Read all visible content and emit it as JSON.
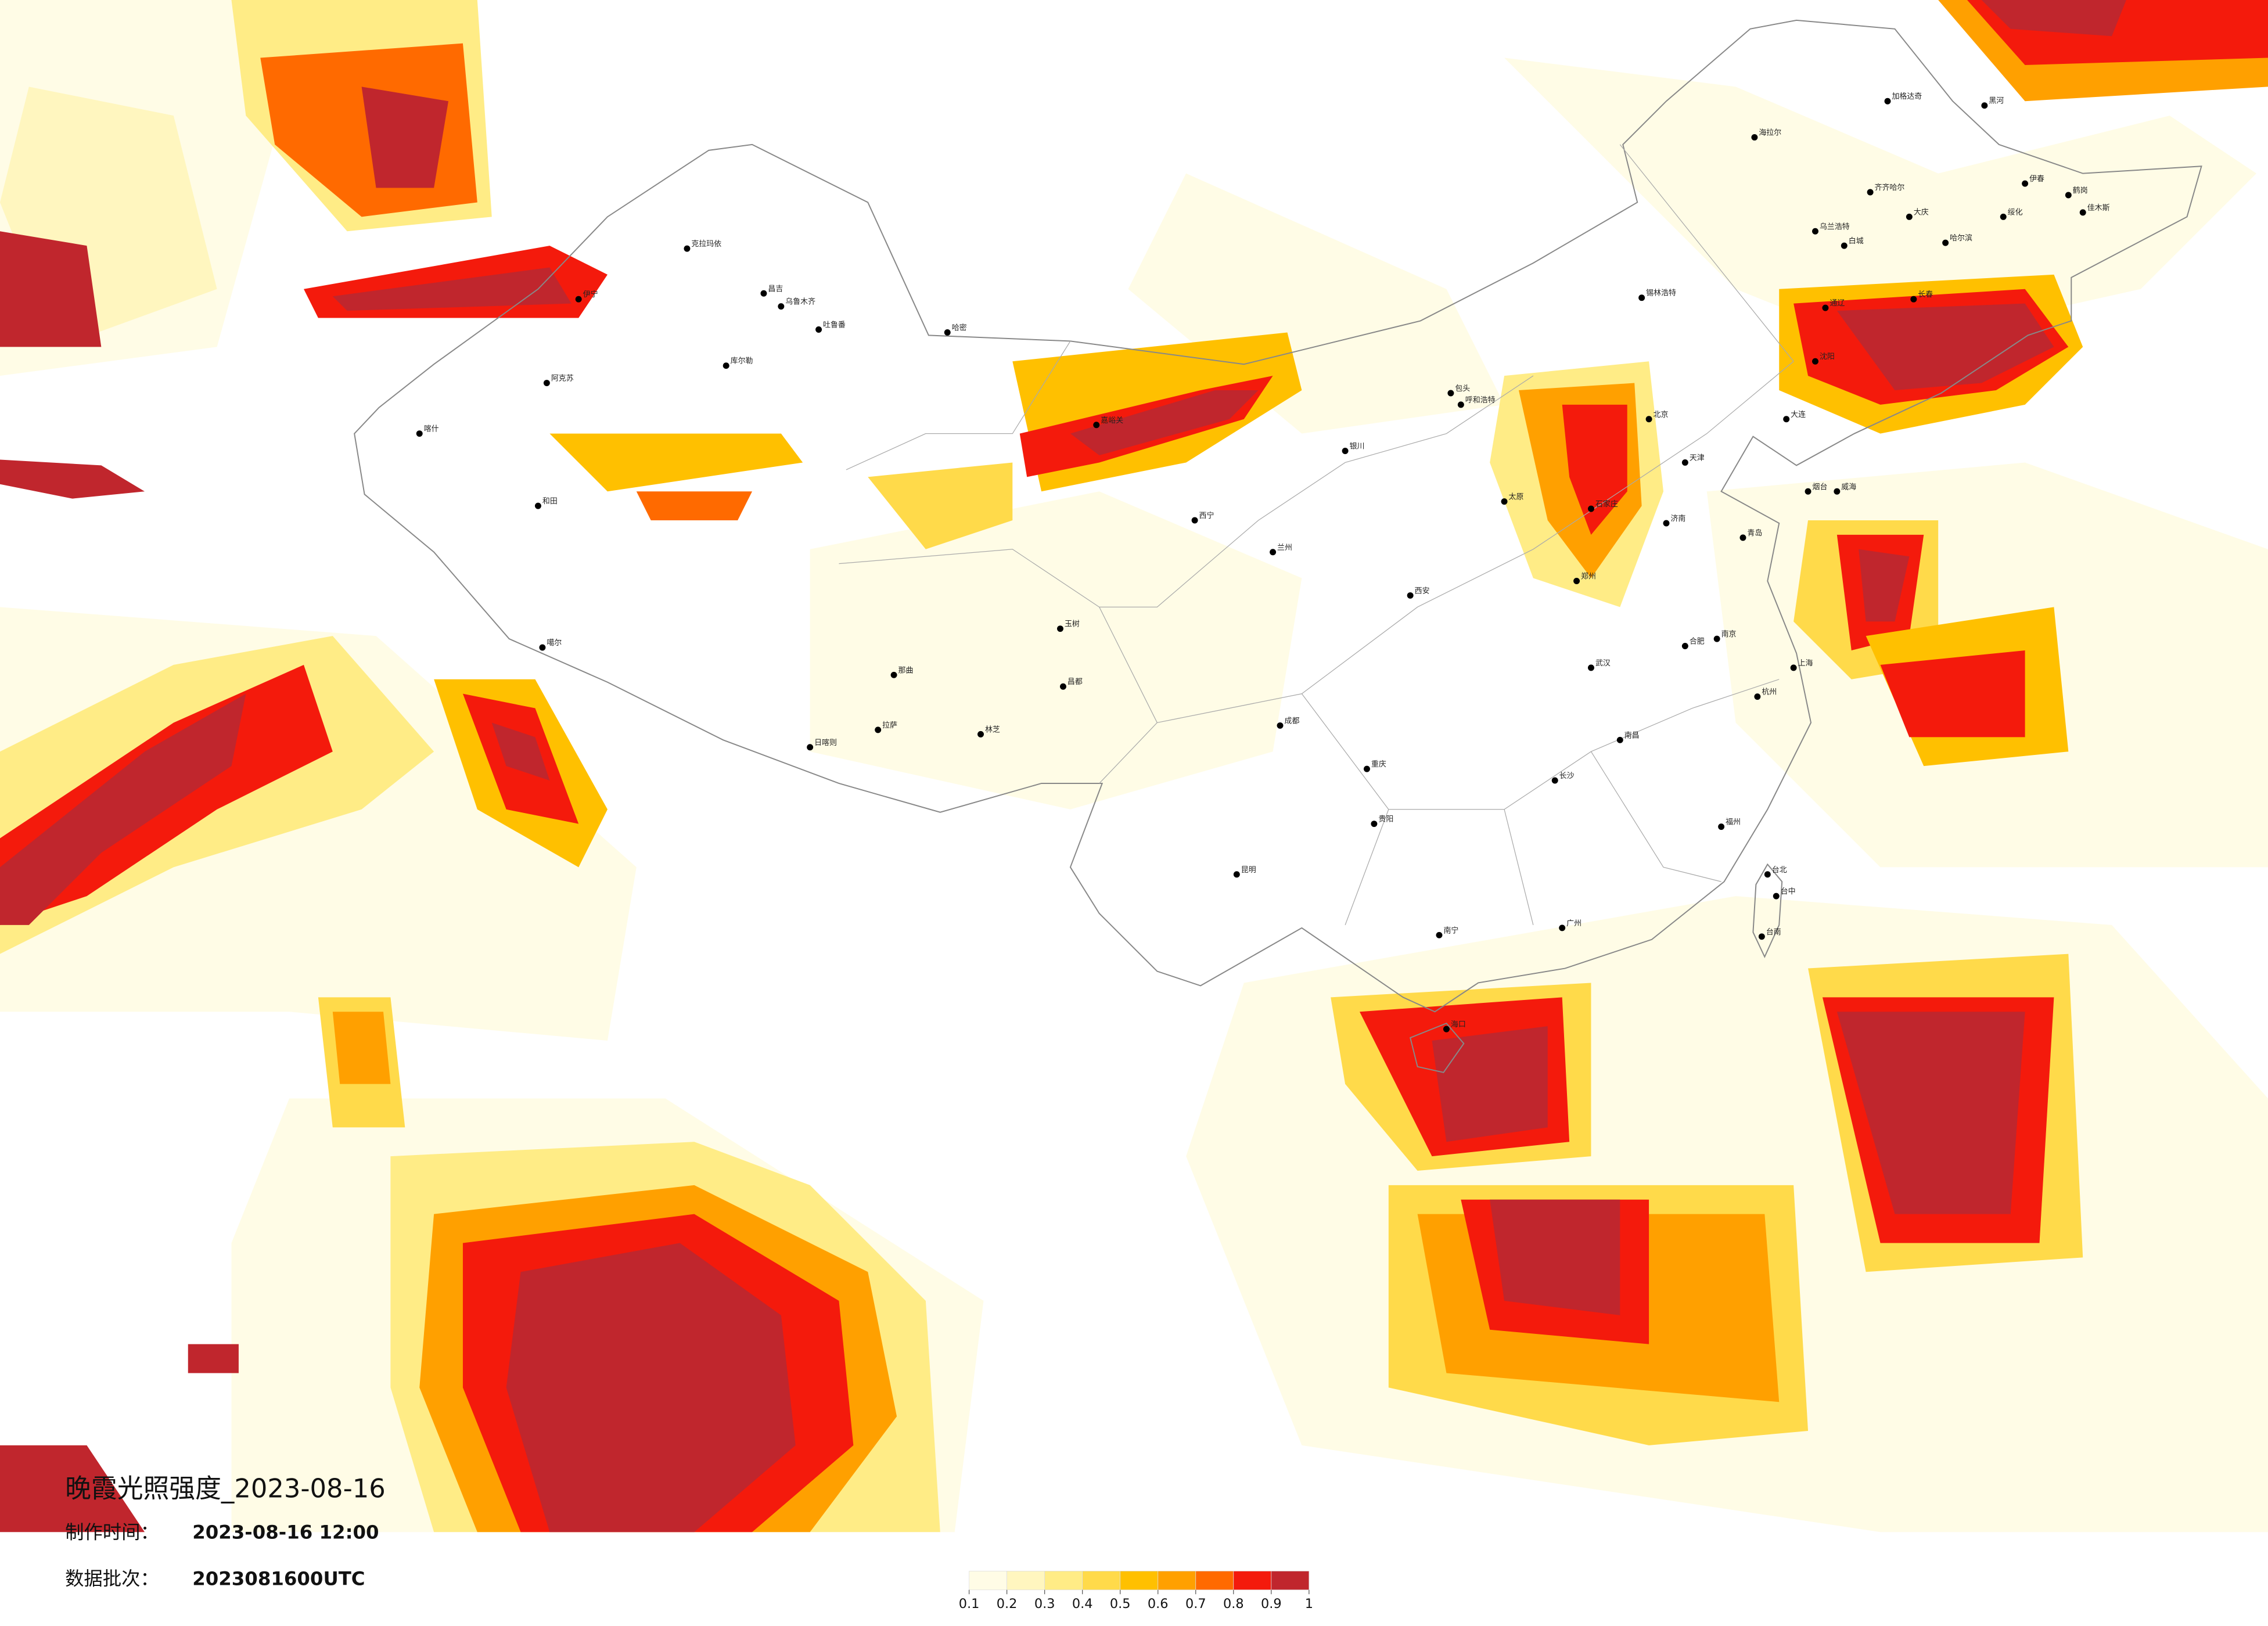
{
  "title": "晚霞光照强度_2023-08-16",
  "made_time": {
    "label": "制作时间：",
    "value": "2023-08-16 12:00"
  },
  "batch": {
    "label": "数据批次：",
    "value": "2023081600UTC"
  },
  "legend": {
    "ticks": [
      0.1,
      0.2,
      0.3,
      0.4,
      0.5,
      0.6,
      0.7,
      0.8,
      0.9,
      1
    ],
    "colors": [
      "#fffce6",
      "#fff6bf",
      "#ffec86",
      "#ffda4a",
      "#ffc000",
      "#ffa000",
      "#ff6a00",
      "#f41a0c",
      "#c0262d"
    ]
  },
  "cities": [
    "海拉尔",
    "加格达奇",
    "黑河",
    "齐齐哈尔",
    "大庆",
    "伊春",
    "鹤岗",
    "佳木斯",
    "绥化",
    "哈尔滨",
    "乌兰浩特",
    "白城",
    "通辽",
    "长春",
    "锡林浩特",
    "克拉玛依",
    "昌吉",
    "乌鲁木齐",
    "吐鲁番",
    "哈密",
    "伊宁",
    "库尔勒",
    "阿克苏",
    "喀什",
    "和田",
    "噶尔",
    "日喀则",
    "拉萨",
    "林芝",
    "那曲",
    "昌都",
    "玉树",
    "嘉峪关",
    "西宁",
    "兰州",
    "银川",
    "包头",
    "呼和浩特",
    "北京",
    "天津",
    "石家庄",
    "太原",
    "济南",
    "青岛",
    "郑州",
    "西安",
    "武汉",
    "合肥",
    "南京",
    "上海",
    "杭州",
    "南昌",
    "长沙",
    "重庆",
    "成都",
    "贵阳",
    "昆明",
    "南宁",
    "广州",
    "福州",
    "台北",
    "台中",
    "台南",
    "海口",
    "沈阳",
    "大连",
    "烟台",
    "威海"
  ]
}
